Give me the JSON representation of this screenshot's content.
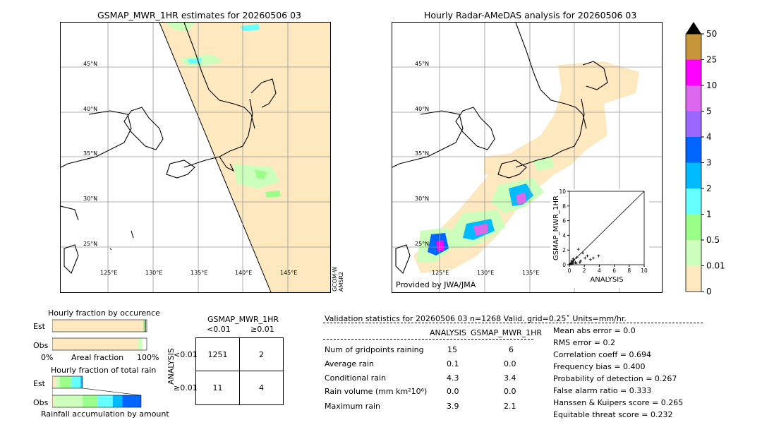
{
  "left_map": {
    "title": "GSMAP_MWR_1HR estimates for 20260506 03",
    "lat_labels": [
      "45°N",
      "40°N",
      "35°N",
      "30°N",
      "25°N"
    ],
    "lon_labels": [
      "125°E",
      "130°E",
      "135°E",
      "140°E",
      "145°E"
    ],
    "sensor_label_1": "GCOM-W",
    "sensor_label_2": "AMSR2"
  },
  "right_map": {
    "title": "Hourly Radar-AMeDAS analysis for 20260506 03",
    "lat_labels": [
      "45°N",
      "40°N",
      "35°N",
      "30°N",
      "25°N"
    ],
    "lon_labels": [
      "125°E",
      "130°E",
      "135°E"
    ],
    "credit": "Provided by JWA/JMA"
  },
  "colorbar": {
    "labels": [
      "50",
      "25",
      "10",
      "5",
      "4",
      "3",
      "2",
      "1",
      "0.5",
      "0.01",
      "0"
    ],
    "colors": [
      "#c8963a",
      "#ff00ff",
      "#dd66ee",
      "#9966ff",
      "#0066ff",
      "#00bbff",
      "#66ffff",
      "#99ff88",
      "#ccffbb",
      "#ffe8c0"
    ]
  },
  "chart_data": [
    {
      "type": "scatter",
      "xlabel": "ANALYSIS",
      "ylabel": "GSMAP_MWR_1HR",
      "xlim": [
        0,
        10
      ],
      "ylim": [
        0,
        10
      ],
      "x_ticks": [
        "0",
        "2",
        "4",
        "6",
        "8",
        "10"
      ],
      "y_ticks": [
        "0",
        "2",
        "4",
        "6",
        "8",
        "10"
      ],
      "x": [
        0.1,
        0.2,
        0.3,
        0.4,
        0.5,
        0.6,
        0.8,
        1.0,
        1.2,
        1.5,
        1.8,
        2.1,
        2.4,
        2.8,
        3.2,
        3.9,
        0.3,
        0.5,
        0.9,
        1.4
      ],
      "y": [
        0.1,
        0.2,
        0.1,
        0.4,
        0.2,
        0.6,
        0.3,
        1.0,
        2.1,
        0.5,
        1.6,
        0.9,
        1.2,
        0.7,
        0.9,
        1.2,
        0.5,
        0.8,
        0.2,
        0.3
      ],
      "diagonal": true
    },
    {
      "type": "bar",
      "title": "Hourly fraction by occurence",
      "categories": [
        "Est",
        "Obs"
      ],
      "x_tick_labels": [
        "0%",
        "100%"
      ],
      "xlabel": "Areal fraction",
      "stacks": [
        {
          "row": "Est",
          "segments": [
            {
              "color": "#ffe8c0",
              "value": 0.962
            },
            {
              "color": "#99ff88",
              "value": 0.02
            },
            {
              "color": "#000000",
              "value": 0.008
            },
            {
              "color": "#ffffff",
              "value": 0.01
            }
          ]
        },
        {
          "row": "Obs",
          "segments": [
            {
              "color": "#ffe8c0",
              "value": 0.91
            },
            {
              "color": "#ccffbb",
              "value": 0.04
            },
            {
              "color": "#ffffff",
              "value": 0.05
            }
          ]
        }
      ]
    },
    {
      "type": "bar",
      "title": "Hourly fraction of total rain",
      "categories": [
        "Est",
        "Obs"
      ],
      "xlabel": "Rainfall accumulation by amount",
      "stacks": [
        {
          "row": "Est",
          "segments": [
            {
              "color": "#ffe8c0",
              "value": 0.04
            },
            {
              "color": "#ccffbb",
              "value": 0.04
            },
            {
              "color": "#99ff88",
              "value": 0.12
            },
            {
              "color": "#66ffff",
              "value": 0.1
            },
            {
              "color": "#00bbff",
              "value": 0.02
            }
          ]
        },
        {
          "row": "Obs",
          "segments": [
            {
              "color": "#ffe8c0",
              "value": 0.02
            },
            {
              "color": "#ccffbb",
              "value": 0.3
            },
            {
              "color": "#99ff88",
              "value": 0.16
            },
            {
              "color": "#66ffff",
              "value": 0.16
            },
            {
              "color": "#00bbff",
              "value": 0.1
            },
            {
              "color": "#0066ff",
              "value": 0.2
            }
          ]
        }
      ]
    },
    {
      "type": "table",
      "title": "GSMAP_MWR_1HR",
      "col_labels": [
        "<0.01",
        "≥0.01"
      ],
      "row_labels": [
        "<0.01",
        "≥0.01"
      ],
      "row_axis_label": "ANALYSIS",
      "cells": [
        [
          "1251",
          "2"
        ],
        [
          "11",
          "4"
        ]
      ]
    }
  ],
  "validation": {
    "header": "Validation statistics for 20260506 03  n=1268 Valid. grid=0.25˚ Units=mm/hr.",
    "col_analysis": "ANALYSIS",
    "col_gsmap": "GSMAP_MWR_1HR",
    "rows": [
      {
        "label": "Num of gridpoints raining",
        "analysis": "15",
        "gsmap": "6"
      },
      {
        "label": "Average rain",
        "analysis": "0.1",
        "gsmap": "0.0"
      },
      {
        "label": "Conditional rain",
        "analysis": "4.3",
        "gsmap": "3.4"
      },
      {
        "label": "Rain volume (mm km²10⁶)",
        "analysis": "0.0",
        "gsmap": "0.0"
      },
      {
        "label": "Maximum rain",
        "analysis": "3.9",
        "gsmap": "2.1"
      }
    ],
    "scores": [
      "Mean abs error =    0.0",
      "RMS error =    0.2",
      "Correlation coeff =  0.694",
      "Frequency bias =  0.400",
      "Probability of detection =  0.267",
      "False alarm ratio =  0.333",
      "Hanssen & Kuipers score =  0.265",
      "Equitable threat score =  0.232"
    ]
  }
}
